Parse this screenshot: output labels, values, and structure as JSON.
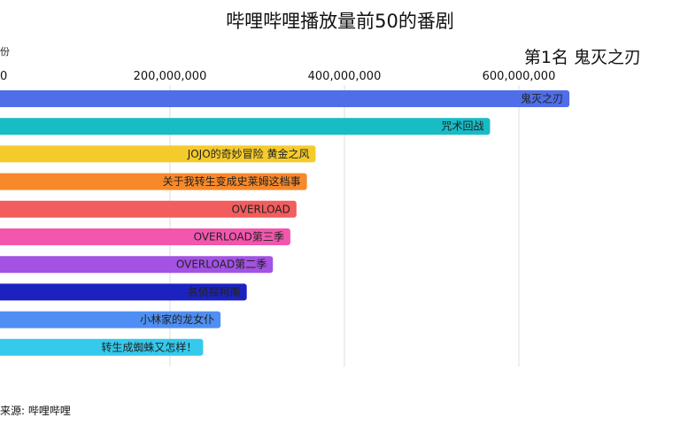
{
  "title": "哔哩哔哩播放量前50的番剧",
  "unit_label": "份",
  "current_rank": "第1名 鬼灭之刃",
  "source": "来源: 哔哩哔哩",
  "chart_data": {
    "type": "bar",
    "orientation": "horizontal",
    "title": "哔哩哔哩播放量前50的番剧",
    "xlim": [
      0,
      650000000
    ],
    "x_ticks": [
      0,
      200000000,
      400000000,
      600000000
    ],
    "x_tick_labels": [
      "0",
      "200,000,000",
      "400,000,000",
      "600,000,000"
    ],
    "grid": true,
    "categories": [
      "鬼灭之刃",
      "咒术回战",
      "JOJO的奇妙冒险 黄金之风",
      "关于我转生变成史莱姆这档事",
      "OVERLOAD",
      "OVERLOAD第三季",
      "OVERLOAD第二季",
      "名侦探柯南",
      "小林家的龙女仆",
      "转生成蜘蛛又怎样！"
    ],
    "values": [
      658000000,
      567000000,
      367000000,
      357000000,
      345000000,
      338000000,
      318000000,
      288000000,
      258000000,
      238000000
    ],
    "colors": [
      "#4f6ee8",
      "#17bcc4",
      "#f5cb2c",
      "#f7892b",
      "#f25d5d",
      "#f257ad",
      "#a352e3",
      "#1c22bf",
      "#4f8ef2",
      "#35c9ec"
    ]
  }
}
